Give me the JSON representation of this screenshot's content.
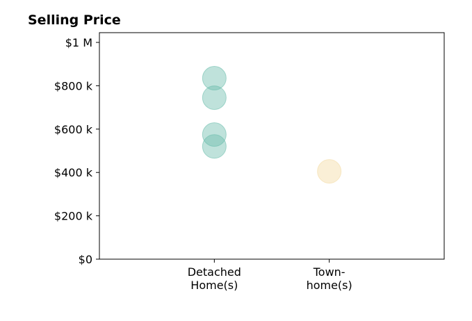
{
  "chart_data": {
    "type": "scatter",
    "title": "Selling Price",
    "xlabel": "",
    "ylabel": "",
    "categories": [
      [
        "Detached",
        "Home(s)"
      ],
      [
        "Town-",
        "home(s)"
      ]
    ],
    "y_ticks": [
      {
        "value": 0,
        "label": "$0"
      },
      {
        "value": 200000,
        "label": "$200 k"
      },
      {
        "value": 400000,
        "label": "$400 k"
      },
      {
        "value": 600000,
        "label": "$600 k"
      },
      {
        "value": 800000,
        "label": "$800 k"
      },
      {
        "value": 1000000,
        "label": "$1 M"
      }
    ],
    "ylim": [
      0,
      1045000
    ],
    "xlim": [
      -1,
      2
    ],
    "grid": false,
    "series": [
      {
        "category": 0,
        "color": "#66bbaa",
        "values": [
          835000,
          745000,
          575000,
          520000
        ]
      },
      {
        "category": 1,
        "color": "#f2d89e",
        "values": [
          405000
        ]
      }
    ]
  }
}
